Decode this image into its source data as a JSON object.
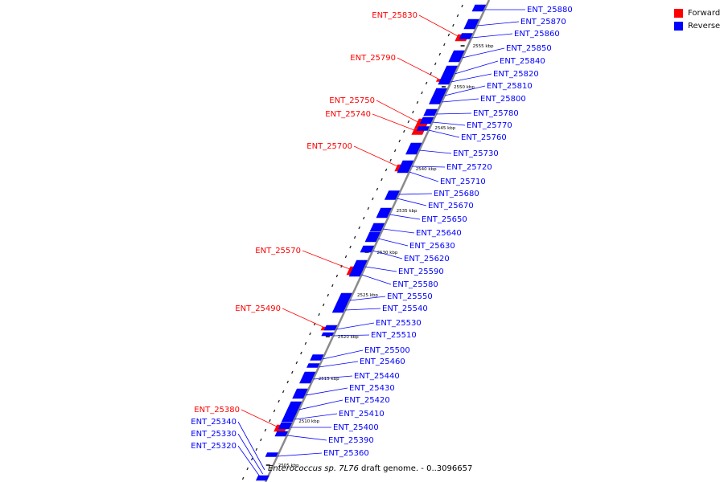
{
  "legend": [
    {
      "label": "Forward",
      "color": "#ff0000"
    },
    {
      "label": "Reverse",
      "color": "#0000ff"
    }
  ],
  "colors": {
    "forward": "#ff0000",
    "reverse": "#0000ff",
    "axis": "#8a8a8a",
    "scale_text": "#000000"
  },
  "caption": {
    "organism": "Enterococcus sp. 7L76",
    "suffix": " draft genome. - 0..3096657"
  },
  "scale_ticks": [
    "2555 kbp",
    "2550 kbp",
    "2545 kbp",
    "2540 kbp",
    "2535 kbp",
    "2530 kbp",
    "2525 kbp",
    "2520 kbp",
    "2515 kbp",
    "2510 kbp",
    "2505 kbp"
  ],
  "genes_forward": [
    "ENT_25830",
    "ENT_25790",
    "ENT_25750",
    "ENT_25740",
    "ENT_25700",
    "ENT_25570",
    "ENT_25490",
    "ENT_25380"
  ],
  "genes_reverse": [
    "ENT_25880",
    "ENT_25870",
    "ENT_25860",
    "ENT_25850",
    "ENT_25840",
    "ENT_25820",
    "ENT_25810",
    "ENT_25800",
    "ENT_25780",
    "ENT_25770",
    "ENT_25760",
    "ENT_25730",
    "ENT_25720",
    "ENT_25710",
    "ENT_25680",
    "ENT_25670",
    "ENT_25650",
    "ENT_25640",
    "ENT_25630",
    "ENT_25620",
    "ENT_25590",
    "ENT_25580",
    "ENT_25550",
    "ENT_25540",
    "ENT_25530",
    "ENT_25510",
    "ENT_25500",
    "ENT_25460",
    "ENT_25440",
    "ENT_25430",
    "ENT_25420",
    "ENT_25410",
    "ENT_25400",
    "ENT_25390",
    "ENT_25360"
  ],
  "genes_reverse_left": [
    "ENT_25340",
    "ENT_25330",
    "ENT_25320"
  ]
}
